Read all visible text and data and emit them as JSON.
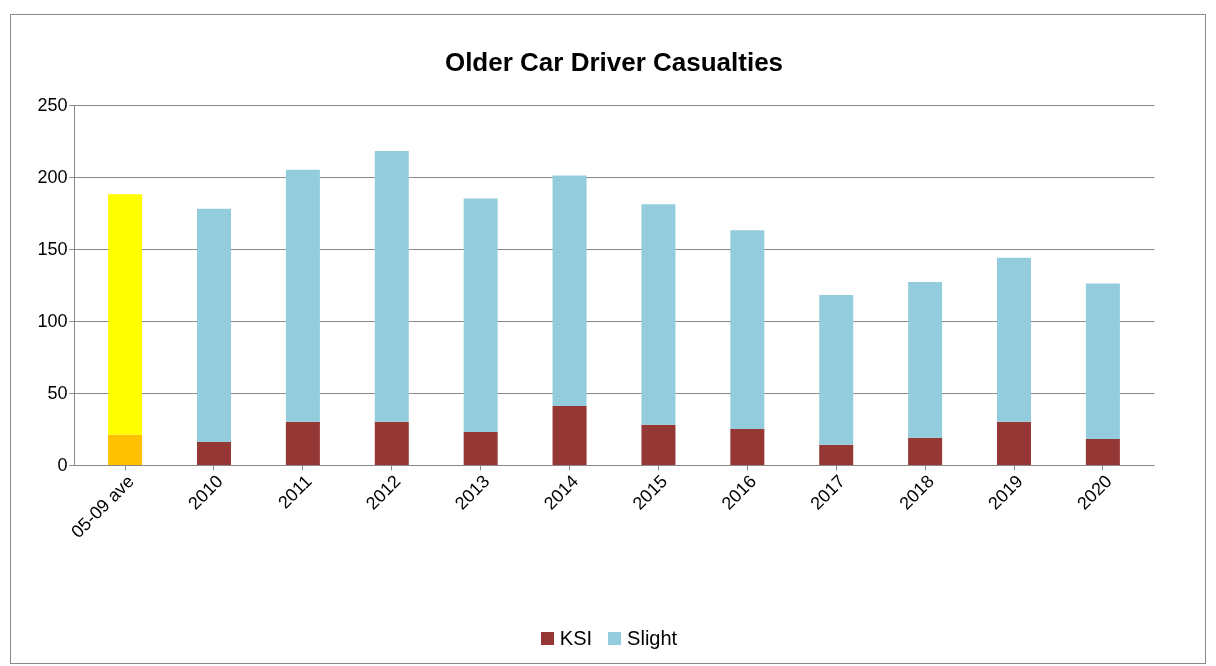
{
  "chart_data": {
    "type": "bar",
    "title": "Older Car Driver Casualties",
    "stacked": true,
    "categories": [
      "05-09 ave",
      "2010",
      "2011",
      "2012",
      "2013",
      "2014",
      "2015",
      "2016",
      "2017",
      "2018",
      "2019",
      "2020"
    ],
    "series": [
      {
        "name": "KSI",
        "color": "#953735",
        "colors": [
          "#ffc000",
          "#953735",
          "#953735",
          "#953735",
          "#953735",
          "#953735",
          "#953735",
          "#953735",
          "#953735",
          "#953735",
          "#953735",
          "#953735"
        ],
        "values": [
          21,
          16,
          30,
          30,
          23,
          41,
          28,
          25,
          14,
          19,
          30,
          18
        ]
      },
      {
        "name": "Slight",
        "color": "#93cddd",
        "colors": [
          "#ffff00",
          "#93cddd",
          "#93cddd",
          "#93cddd",
          "#93cddd",
          "#93cddd",
          "#93cddd",
          "#93cddd",
          "#93cddd",
          "#93cddd",
          "#93cddd",
          "#93cddd"
        ],
        "values": [
          167,
          162,
          175,
          188,
          162,
          160,
          153,
          138,
          104,
          108,
          114,
          108
        ]
      }
    ],
    "ylim": [
      0,
      250
    ],
    "yticks": [
      0,
      50,
      100,
      150,
      200,
      250
    ],
    "grid": "y",
    "legend": "bottom"
  }
}
